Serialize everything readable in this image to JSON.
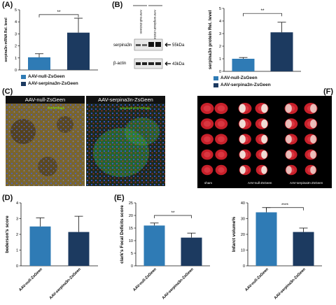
{
  "colors": {
    "light_bar": "#2f7bb5",
    "dark_bar": "#1c3a60",
    "text": "#111111"
  },
  "panel_a": {
    "letter": "(A)",
    "significance": "**",
    "legend": [
      "AAV-null-ZsGeen",
      "AAV-serpina3n-ZsGeen"
    ]
  },
  "panel_b": {
    "letter": "(B)",
    "lane_labels": [
      "AAV-null-ZsGeen",
      "AAV-serpina3n-ZsGeen"
    ],
    "row_labels": [
      "serpina3n",
      "β-actin"
    ],
    "kda_labels": [
      "55kDa",
      "43kDa"
    ],
    "significance": "**",
    "legend": [
      "AAV-null-ZsGeen",
      "AAV-serpina3n-ZsGeen"
    ]
  },
  "panel_c": {
    "letter": "(C)",
    "titles": [
      "AAV-null-ZsGeen",
      "AAV-serpina3n-ZsGeen"
    ],
    "legend_left": "/GFAP/Dapi",
    "legend_right": "serpina3n/GFAP/Dapi"
  },
  "panel_d": {
    "letter": "(D)"
  },
  "panel_e": {
    "letter": "(E)",
    "significance": "**"
  },
  "panel_e2": {
    "significance": "****"
  },
  "panel_f": {
    "letter": "(F)",
    "group_labels": [
      "sham",
      "AAV-null-ZsGeen",
      "AAV-serpina3n-ZsGeen"
    ]
  },
  "chart_data": [
    {
      "id": "A",
      "type": "bar",
      "categories": [
        "AAV-null-ZsGeen",
        "AAV-serpina3n-ZsGeen"
      ],
      "values": [
        1.05,
        3.1
      ],
      "errors": [
        0.3,
        1.2
      ],
      "ylabel": "serpina3n mRNA Rel. level",
      "ylim": [
        0,
        5
      ],
      "yticks": [
        "0",
        "1",
        "2",
        "3",
        "4",
        "5"
      ]
    },
    {
      "id": "B",
      "type": "bar",
      "categories": [
        "AAV-null-ZsGeen",
        "AAV-serpina3n-ZsGeen"
      ],
      "values": [
        1.0,
        3.1
      ],
      "errors": [
        0.1,
        0.8
      ],
      "ylabel": "serpina3n protein Rel. level",
      "ylim": [
        0,
        5
      ],
      "yticks": [
        "0",
        "1",
        "2",
        "3",
        "4",
        "5"
      ]
    },
    {
      "id": "D",
      "type": "bar",
      "categories": [
        "AAV-null-ZsGeen",
        "AAV-serpina3n-ZsGeen"
      ],
      "values": [
        2.5,
        2.15
      ],
      "errors": [
        0.55,
        1.0
      ],
      "ylabel": "bederson's score",
      "ylim": [
        0,
        4
      ],
      "yticks": [
        "0",
        "1",
        "2",
        "3",
        "4"
      ]
    },
    {
      "id": "E",
      "type": "bar",
      "categories": [
        "AAV-null-ZsGeen",
        "AAV-serpina3n-ZsGeen"
      ],
      "values": [
        16,
        11.2
      ],
      "errors": [
        1.0,
        1.8
      ],
      "ylabel": "clark's Focal Deficits score",
      "ylim": [
        0,
        25
      ],
      "yticks": [
        "0",
        "5",
        "10",
        "15",
        "20",
        "25"
      ]
    },
    {
      "id": "E2",
      "type": "bar",
      "categories": [
        "AAV-null-ZsGeen",
        "AAV-serpina3n-ZsGeen"
      ],
      "values": [
        34,
        21.5
      ],
      "errors": [
        3,
        2.5
      ],
      "ylabel": "Infarct volume%",
      "ylim": [
        0,
        40
      ],
      "yticks": [
        "0",
        "10",
        "20",
        "30",
        "40"
      ]
    }
  ]
}
